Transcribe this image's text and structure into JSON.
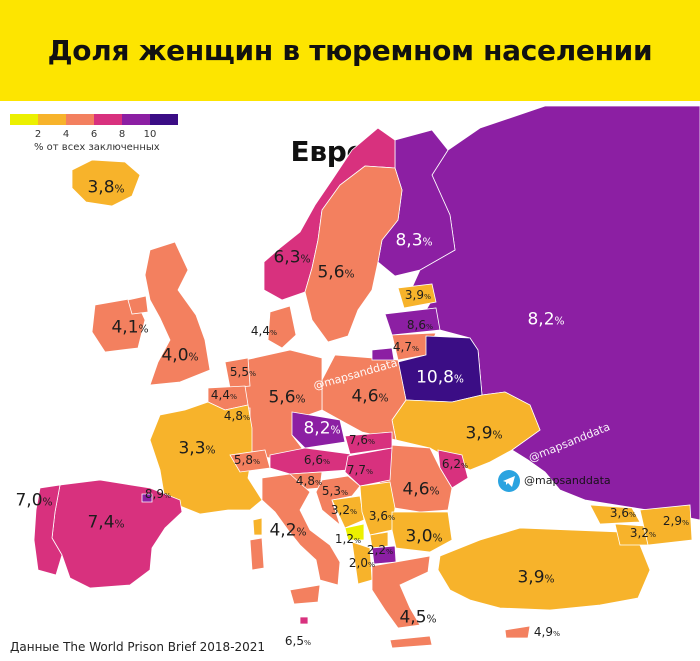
{
  "title": "Доля женщин в тюремном населении Европы",
  "legend": {
    "ticks": [
      "2",
      "4",
      "6",
      "8",
      "10"
    ],
    "caption": "% от всех заключенных",
    "colors": [
      "#ecf000",
      "#f7b32b",
      "#f3805f",
      "#d8317e",
      "#8c1fa3",
      "#3b0d85"
    ]
  },
  "colors": {
    "header": "#fde500",
    "sea": "#ffffff",
    "non_data_land": "#8c1fa3",
    "telegram": "#2aa3e0"
  },
  "regions": [
    {
      "name": "Исландия",
      "value": 3.8,
      "label": "3,8"
    },
    {
      "name": "Норвегия",
      "value": 6.3,
      "label": "6,3"
    },
    {
      "name": "Швеция",
      "value": 5.6,
      "label": "5,6"
    },
    {
      "name": "Финляндия",
      "value": 8.3,
      "label": "8,3"
    },
    {
      "name": "Эстония",
      "value": 3.9,
      "label": "3,9"
    },
    {
      "name": "Латвия",
      "value": 8.6,
      "label": "8,6"
    },
    {
      "name": "Литва",
      "value": 4.7,
      "label": "4,7"
    },
    {
      "name": "Россия",
      "value": 8.2,
      "label": "8,2"
    },
    {
      "name": "Ирландия",
      "value": 4.1,
      "label": "4,1"
    },
    {
      "name": "Великобритания",
      "value": 4.0,
      "label": "4,0"
    },
    {
      "name": "Дания",
      "value": 4.4,
      "label": "4,4"
    },
    {
      "name": "Нидерланды",
      "value": 5.5,
      "label": "5,5"
    },
    {
      "name": "Бельгия",
      "value": 4.4,
      "label": "4,4"
    },
    {
      "name": "Люксембург",
      "value": 4.8,
      "label": "4,8"
    },
    {
      "name": "Германия",
      "value": 5.6,
      "label": "5,6"
    },
    {
      "name": "Польша",
      "value": 4.6,
      "label": "4,6"
    },
    {
      "name": "Беларусь",
      "value": 10.8,
      "label": "10,8"
    },
    {
      "name": "Чехия",
      "value": 8.2,
      "label": "8,2"
    },
    {
      "name": "Словакия",
      "value": 7.6,
      "label": "7,6"
    },
    {
      "name": "Украина",
      "value": 3.9,
      "label": "3,9"
    },
    {
      "name": "Франция",
      "value": 3.3,
      "label": "3,3"
    },
    {
      "name": "Швейцария",
      "value": 5.8,
      "label": "5,8"
    },
    {
      "name": "Австрия",
      "value": 6.6,
      "label": "6,6"
    },
    {
      "name": "Венгрия",
      "value": 7.7,
      "label": "7,7"
    },
    {
      "name": "Молдова",
      "value": 6.2,
      "label": "6,2"
    },
    {
      "name": "Словения",
      "value": 4.8,
      "label": "4,8"
    },
    {
      "name": "Хорватия",
      "value": 5.3,
      "label": "5,3"
    },
    {
      "name": "Румыния",
      "value": 4.6,
      "label": "4,6"
    },
    {
      "name": "Португалия",
      "value": 7.0,
      "label": "7,0"
    },
    {
      "name": "Андорра",
      "value": 8.9,
      "label": "8,9"
    },
    {
      "name": "Испания",
      "value": 7.4,
      "label": "7,4"
    },
    {
      "name": "Босния и Герцеговина",
      "value": 3.2,
      "label": "3,2"
    },
    {
      "name": "Сербия",
      "value": 3.6,
      "label": "3,6"
    },
    {
      "name": "Черногория",
      "value": 1.2,
      "label": "1,2"
    },
    {
      "name": "Косово",
      "value": 2.2,
      "label": "2,2"
    },
    {
      "name": "Албания",
      "value": 2.0,
      "label": "2,0"
    },
    {
      "name": "Болгария",
      "value": 3.0,
      "label": "3,0"
    },
    {
      "name": "Италия",
      "value": 4.2,
      "label": "4,2"
    },
    {
      "name": "Грузия",
      "value": 3.6,
      "label": "3,6"
    },
    {
      "name": "Азербайджан",
      "value": 2.9,
      "label": "2,9"
    },
    {
      "name": "Армения",
      "value": 3.2,
      "label": "3,2"
    },
    {
      "name": "Турция",
      "value": 3.9,
      "label": "3,9"
    },
    {
      "name": "Греция",
      "value": 4.5,
      "label": "4,5"
    },
    {
      "name": "Мальта",
      "value": 6.5,
      "label": "6,5"
    },
    {
      "name": "Кипр",
      "value": 4.9,
      "label": "4,9"
    }
  ],
  "watermarks": [
    "@mapsanddata",
    "@mapsanddata",
    "@mapsanddata"
  ],
  "source": "Данные The World Prison Brief 2018-2021"
}
